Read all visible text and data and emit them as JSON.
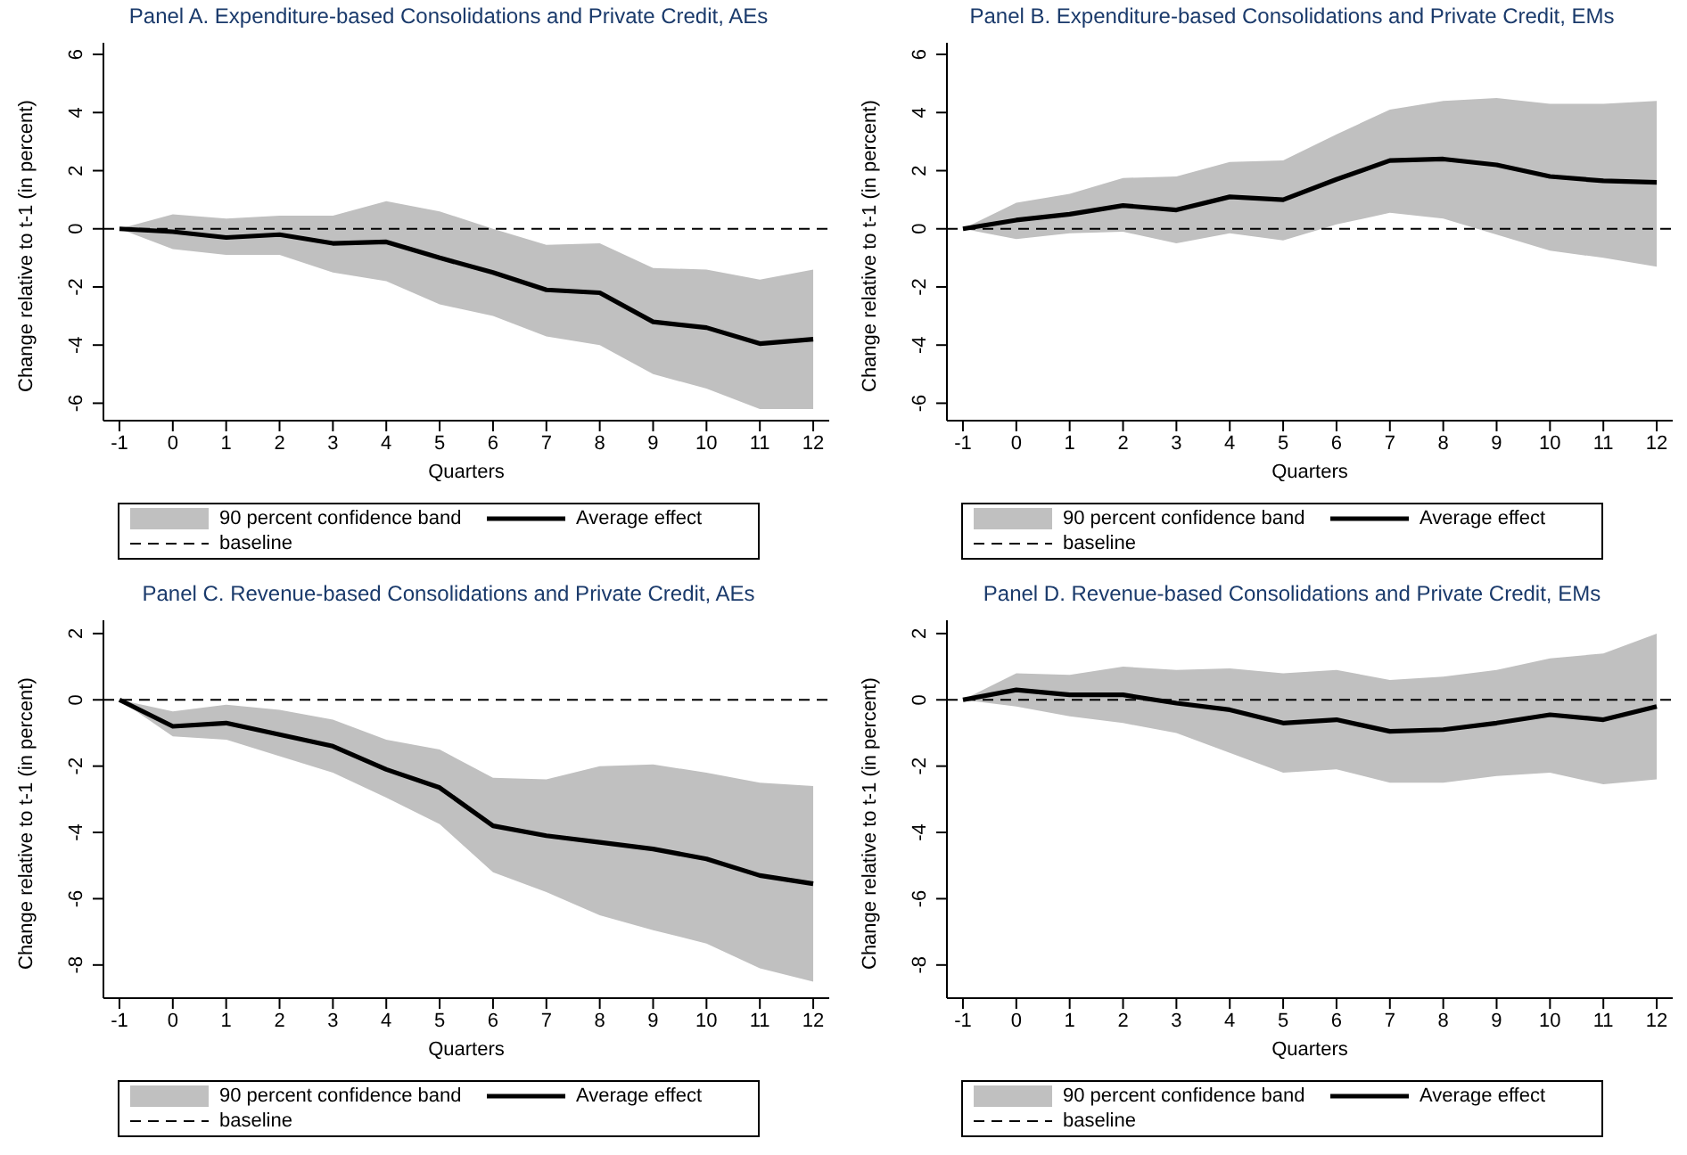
{
  "chart_data": [
    {
      "type": "line",
      "annotations": [
        "90 percent confidence band"
      ],
      "title": "Panel A. Expenditure-based Consolidations and Private Credit, AEs",
      "xlabel": "Quarters",
      "ylabel": "Change relative to t-1 (in percent)",
      "x": [
        -1,
        0,
        1,
        2,
        3,
        4,
        5,
        6,
        7,
        8,
        9,
        10,
        11,
        12
      ],
      "xlim": [
        -1.3,
        12.3
      ],
      "xticks": [
        -1,
        0,
        1,
        2,
        3,
        4,
        5,
        6,
        7,
        8,
        9,
        10,
        11,
        12
      ],
      "ylim": [
        -6.6,
        6.4
      ],
      "yticks": [
        -6,
        -4,
        -2,
        0,
        2,
        4,
        6
      ],
      "legend": "bottom",
      "series": [
        {
          "name": "Average effect",
          "color": "#000000",
          "values": [
            0,
            -0.1,
            -0.3,
            -0.2,
            -0.5,
            -0.45,
            -1.0,
            -1.5,
            -2.1,
            -2.2,
            -3.2,
            -3.4,
            -3.95,
            -3.8
          ],
          "lower": [
            0,
            -0.7,
            -0.9,
            -0.9,
            -1.5,
            -1.8,
            -2.6,
            -3.0,
            -3.7,
            -4.0,
            -5.0,
            -5.5,
            -6.2,
            -6.2
          ],
          "upper": [
            0,
            0.5,
            0.35,
            0.45,
            0.45,
            0.95,
            0.6,
            0.0,
            -0.55,
            -0.5,
            -1.35,
            -1.4,
            -1.75,
            -1.4
          ]
        }
      ],
      "ref_lines": [
        {
          "axis": "y",
          "value": 0,
          "label": "baseline",
          "color": "#000000",
          "line_style": "dashed"
        }
      ]
    },
    {
      "type": "line",
      "annotations": [
        "90 percent confidence band"
      ],
      "title": "Panel B. Expenditure-based Consolidations and Private Credit, EMs",
      "xlabel": "Quarters",
      "ylabel": "Change relative to t-1 (in percent)",
      "x": [
        -1,
        0,
        1,
        2,
        3,
        4,
        5,
        6,
        7,
        8,
        9,
        10,
        11,
        12
      ],
      "xlim": [
        -1.3,
        12.3
      ],
      "xticks": [
        -1,
        0,
        1,
        2,
        3,
        4,
        5,
        6,
        7,
        8,
        9,
        10,
        11,
        12
      ],
      "ylim": [
        -6.6,
        6.4
      ],
      "yticks": [
        -6,
        -4,
        -2,
        0,
        2,
        4,
        6
      ],
      "legend": "bottom",
      "series": [
        {
          "name": "Average effect",
          "color": "#000000",
          "values": [
            0,
            0.3,
            0.5,
            0.8,
            0.65,
            1.1,
            1.0,
            1.7,
            2.35,
            2.4,
            2.2,
            1.8,
            1.65,
            1.6
          ],
          "lower": [
            0,
            -0.35,
            -0.15,
            -0.1,
            -0.5,
            -0.15,
            -0.4,
            0.15,
            0.55,
            0.35,
            -0.2,
            -0.75,
            -1.0,
            -1.3
          ],
          "upper": [
            0,
            0.9,
            1.2,
            1.75,
            1.8,
            2.3,
            2.35,
            3.25,
            4.1,
            4.4,
            4.5,
            4.3,
            4.3,
            4.4
          ]
        }
      ],
      "ref_lines": [
        {
          "axis": "y",
          "value": 0,
          "label": "baseline",
          "color": "#000000",
          "line_style": "dashed"
        }
      ]
    },
    {
      "type": "line",
      "annotations": [
        "90 percent confidence band"
      ],
      "title": "Panel C. Revenue-based Consolidations and Private Credit, AEs",
      "xlabel": "Quarters",
      "ylabel": "Change relative to t-1 (in percent)",
      "x": [
        -1,
        0,
        1,
        2,
        3,
        4,
        5,
        6,
        7,
        8,
        9,
        10,
        11,
        12
      ],
      "xlim": [
        -1.3,
        12.3
      ],
      "xticks": [
        -1,
        0,
        1,
        2,
        3,
        4,
        5,
        6,
        7,
        8,
        9,
        10,
        11,
        12
      ],
      "ylim": [
        -9,
        2.4
      ],
      "yticks": [
        -8,
        -6,
        -4,
        -2,
        0,
        2
      ],
      "legend": "bottom",
      "series": [
        {
          "name": "Average effect",
          "color": "#000000",
          "values": [
            0,
            -0.8,
            -0.7,
            -1.05,
            -1.4,
            -2.1,
            -2.65,
            -3.8,
            -4.1,
            -4.3,
            -4.5,
            -4.8,
            -5.3,
            -5.55
          ],
          "lower": [
            0,
            -1.1,
            -1.2,
            -1.7,
            -2.2,
            -2.95,
            -3.75,
            -5.2,
            -5.8,
            -6.5,
            -6.95,
            -7.35,
            -8.1,
            -8.5
          ],
          "upper": [
            0,
            -0.35,
            -0.15,
            -0.3,
            -0.6,
            -1.2,
            -1.5,
            -2.35,
            -2.4,
            -2.0,
            -1.95,
            -2.2,
            -2.5,
            -2.6
          ]
        }
      ],
      "ref_lines": [
        {
          "axis": "y",
          "value": 0,
          "label": "baseline",
          "color": "#000000",
          "line_style": "dashed"
        }
      ]
    },
    {
      "type": "line",
      "annotations": [
        "90 percent confidence band"
      ],
      "title": "Panel D. Revenue-based Consolidations and Private Credit, EMs",
      "xlabel": "Quarters",
      "ylabel": "Change relative to t-1 (in percent)",
      "x": [
        -1,
        0,
        1,
        2,
        3,
        4,
        5,
        6,
        7,
        8,
        9,
        10,
        11,
        12
      ],
      "xlim": [
        -1.3,
        12.3
      ],
      "xticks": [
        -1,
        0,
        1,
        2,
        3,
        4,
        5,
        6,
        7,
        8,
        9,
        10,
        11,
        12
      ],
      "ylim": [
        -9,
        2.4
      ],
      "yticks": [
        -8,
        -6,
        -4,
        -2,
        0,
        2
      ],
      "legend": "bottom",
      "series": [
        {
          "name": "Average effect",
          "color": "#000000",
          "values": [
            0,
            0.3,
            0.15,
            0.15,
            -0.1,
            -0.3,
            -0.7,
            -0.6,
            -0.95,
            -0.9,
            -0.7,
            -0.45,
            -0.6,
            -0.2
          ],
          "lower": [
            0,
            -0.2,
            -0.5,
            -0.7,
            -1.0,
            -1.6,
            -2.2,
            -2.1,
            -2.5,
            -2.5,
            -2.3,
            -2.2,
            -2.55,
            -2.4
          ],
          "upper": [
            0,
            0.8,
            0.75,
            1.0,
            0.9,
            0.95,
            0.8,
            0.9,
            0.6,
            0.7,
            0.9,
            1.25,
            1.4,
            2.0
          ]
        }
      ],
      "ref_lines": [
        {
          "axis": "y",
          "value": 0,
          "label": "baseline",
          "color": "#000000",
          "line_style": "dashed"
        }
      ]
    }
  ]
}
